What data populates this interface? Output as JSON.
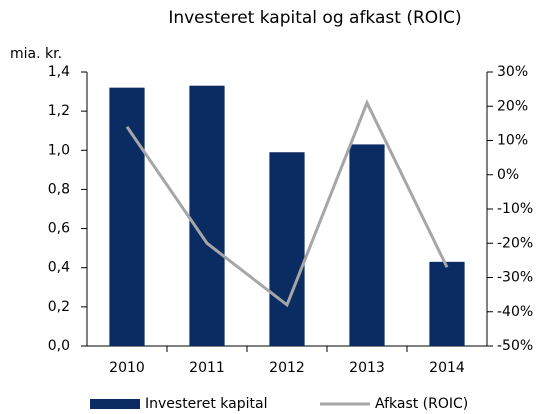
{
  "chart_data": {
    "type": "bar-line",
    "title": "Investeret kapital og afkast (ROIC)",
    "y_label": "mia. kr.",
    "categories": [
      "2010",
      "2011",
      "2012",
      "2013",
      "2014"
    ],
    "series": [
      {
        "name": "Investeret kapital",
        "color": "#0b2c62",
        "type": "bar",
        "values": [
          1.32,
          1.33,
          0.99,
          1.03,
          0.43
        ]
      },
      {
        "name": "Afkast (ROIC)",
        "color": "#a6a6a6",
        "type": "line",
        "axis": "y2",
        "values": [
          14,
          -20,
          -38,
          21,
          -27
        ]
      }
    ],
    "ylim": [
      0,
      1.4
    ],
    "yticks": [
      {
        "value": 0,
        "label": "0,0"
      },
      {
        "value": 0.2,
        "label": "0,2"
      },
      {
        "value": 0.4,
        "label": "0,4"
      },
      {
        "value": 0.6,
        "label": "0,6"
      },
      {
        "value": 0.8,
        "label": "0,8"
      },
      {
        "value": 1.0,
        "label": "1,0"
      },
      {
        "value": 1.2,
        "label": "1,2"
      },
      {
        "value": 1.4,
        "label": "1,4"
      }
    ],
    "y2lim": [
      -50,
      30
    ],
    "y2ticks": [
      {
        "value": -50,
        "label": "-50%"
      },
      {
        "value": -40,
        "label": "-40%"
      },
      {
        "value": -30,
        "label": "-30%"
      },
      {
        "value": -20,
        "label": "-20%"
      },
      {
        "value": -10,
        "label": "-10%"
      },
      {
        "value": 0,
        "label": "0%"
      },
      {
        "value": 10,
        "label": "10%"
      },
      {
        "value": 20,
        "label": "20%"
      },
      {
        "value": 30,
        "label": "30%"
      }
    ],
    "legend": "bottom"
  }
}
